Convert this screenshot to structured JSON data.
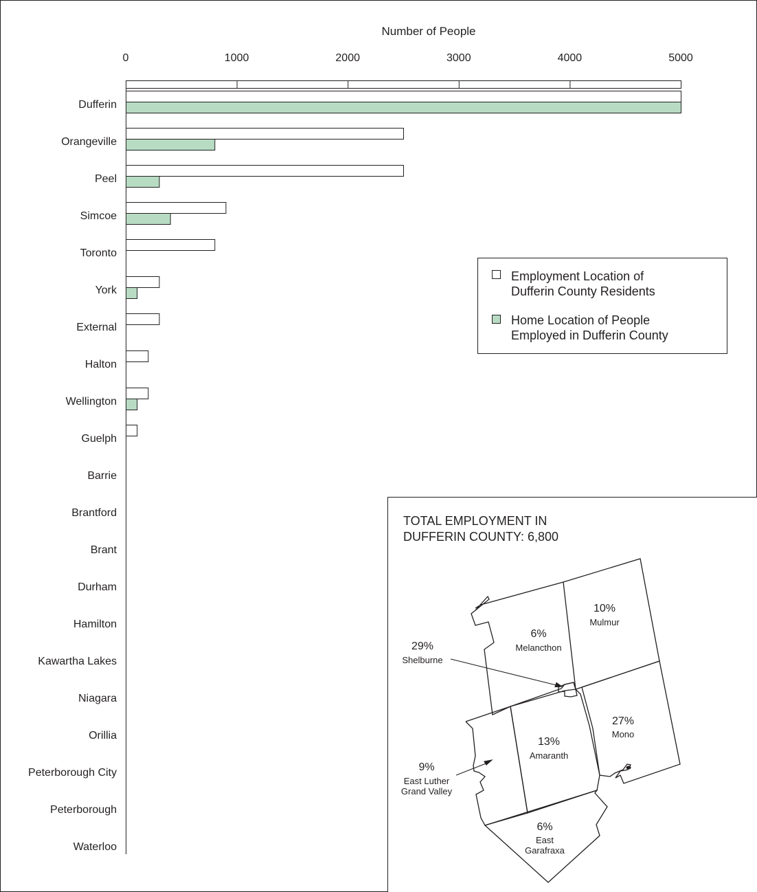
{
  "chart_data": {
    "type": "bar",
    "orientation": "horizontal",
    "xlabel": "Number of People",
    "xlim": [
      0,
      5000
    ],
    "xticks": [
      0,
      1000,
      2000,
      3000,
      4000,
      5000
    ],
    "categories": [
      "Dufferin",
      "Orangeville",
      "Peel",
      "Simcoe",
      "Toronto",
      "York",
      "External",
      "Halton",
      "Wellington",
      "Guelph",
      "Barrie",
      "Brantford",
      "Brant",
      "Durham",
      "Hamilton",
      "Kawartha Lakes",
      "Niagara",
      "Orillia",
      "Peterborough City",
      "Peterborough",
      "Waterloo"
    ],
    "series": [
      {
        "name": "Employment Location of\nDufferin County Residents",
        "color": "#ffffff",
        "values": [
          5000,
          2500,
          2500,
          900,
          800,
          300,
          300,
          200,
          200,
          100,
          0,
          0,
          0,
          0,
          0,
          0,
          0,
          0,
          0,
          0,
          0
        ]
      },
      {
        "name": "Home Location of People\nEmployed in Dufferin County",
        "color": "#b7dcc3",
        "values": [
          5000,
          800,
          300,
          400,
          0,
          100,
          0,
          0,
          100,
          0,
          0,
          0,
          0,
          0,
          0,
          0,
          0,
          0,
          0,
          0,
          0
        ]
      }
    ],
    "legend": "right",
    "grid": false
  },
  "inset_map": {
    "title_line1": "TOTAL EMPLOYMENT IN",
    "title_line2": "DUFFERIN COUNTY: 6,800",
    "regions": [
      {
        "pct": "10%",
        "name": "Mulmur"
      },
      {
        "pct": "6%",
        "name": "Melancthon"
      },
      {
        "pct": "29%",
        "name": "Shelburne"
      },
      {
        "pct": "27%",
        "name": "Mono"
      },
      {
        "pct": "13%",
        "name": "Amaranth"
      },
      {
        "pct": "9%",
        "name_line1": "East Luther",
        "name_line2": "Grand Valley"
      },
      {
        "pct": "6%",
        "name_line1": "East",
        "name_line2": "Garafraxa"
      }
    ]
  },
  "colors": {
    "outline": "#231f20",
    "home_fill": "#b7dcc3",
    "employment_fill": "#ffffff"
  }
}
